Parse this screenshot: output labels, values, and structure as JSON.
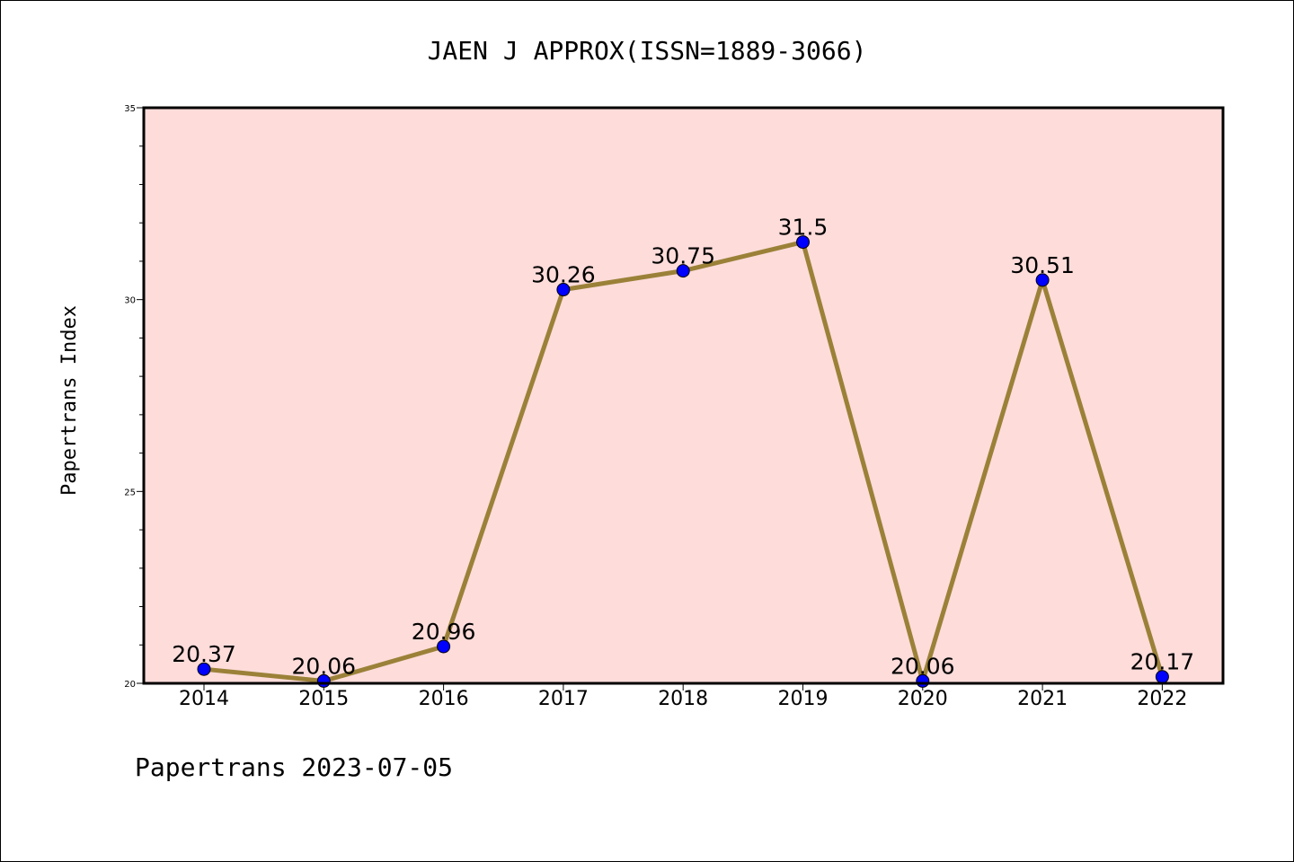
{
  "chart_data": {
    "type": "line",
    "title": "JAEN J APPROX(ISSN=1889-3066)",
    "ylabel": "Papertrans Index",
    "xlabel": "",
    "footer": "Papertrans 2023-07-05",
    "categories": [
      "2014",
      "2015",
      "2016",
      "2017",
      "2018",
      "2019",
      "2020",
      "2021",
      "2022"
    ],
    "values": [
      20.37,
      20.06,
      20.96,
      30.26,
      30.75,
      31.5,
      20.06,
      30.51,
      20.17
    ],
    "data_labels": [
      "20.37",
      "20.06",
      "20.96",
      "30.26",
      "30.75",
      "31.5",
      "20.06",
      "30.51",
      "20.17"
    ],
    "ylim": [
      20,
      35
    ],
    "yticks": [
      20,
      25,
      30,
      35
    ],
    "grid": false,
    "legend": "none",
    "colors": {
      "plot_background": "#fddcda",
      "line": "#9b8138",
      "marker": "#0000ff"
    }
  }
}
